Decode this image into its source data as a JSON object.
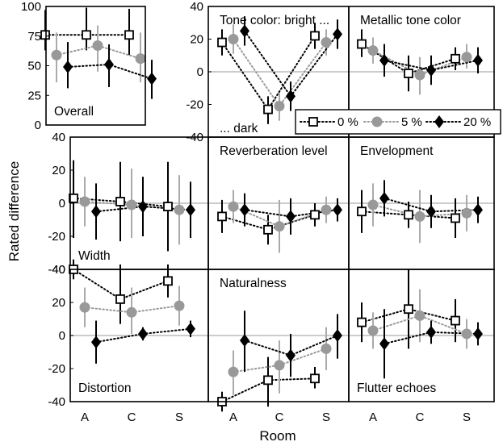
{
  "figure": {
    "ylabel": "Rated difference",
    "xlabel": "Room",
    "x_categories": [
      "A",
      "C",
      "S"
    ],
    "legend": {
      "placement": "inside-top-right",
      "entries": [
        {
          "label": "0 %",
          "marker": "open-square",
          "color": "#000000"
        },
        {
          "label": "5 %",
          "marker": "filled-circle",
          "color": "#999999"
        },
        {
          "label": "20 %",
          "marker": "filled-diamond",
          "color": "#000000"
        }
      ]
    },
    "colors": {
      "zero_line": "#bbbbbb",
      "err_0": "#000000",
      "err_5": "#aaaaaa",
      "err_20": "#000000"
    }
  },
  "chart_data": [
    {
      "type": "scatter",
      "title": "Overall",
      "categories": [
        "A",
        "C",
        "S"
      ],
      "ylim": [
        0,
        100
      ],
      "yticks": [
        0,
        25,
        50,
        75,
        100
      ],
      "series": [
        {
          "name": "0 %",
          "values": [
            76,
            76,
            76
          ],
          "err_low": [
            63,
            63,
            59
          ],
          "err_high": [
            97,
            99,
            98
          ]
        },
        {
          "name": "5 %",
          "values": [
            59,
            67,
            56
          ],
          "err_low": [
            36,
            45,
            36
          ],
          "err_high": [
            78,
            84,
            78
          ]
        },
        {
          "name": "20 %",
          "values": [
            49,
            51,
            39
          ],
          "err_low": [
            31,
            32,
            22
          ],
          "err_high": [
            70,
            68,
            55
          ]
        }
      ]
    },
    {
      "type": "scatter",
      "title": "Tone color: bright ...",
      "annotation": "... dark",
      "categories": [
        "A",
        "C",
        "S"
      ],
      "ylim": [
        -40,
        40
      ],
      "yticks": [
        -40,
        -20,
        0,
        20,
        40
      ],
      "series": [
        {
          "name": "0 %",
          "values": [
            18,
            -23,
            22
          ],
          "err_low": [
            10,
            -32,
            14
          ],
          "err_high": [
            26,
            -15,
            30
          ]
        },
        {
          "name": "5 %",
          "values": [
            20,
            -21,
            18
          ],
          "err_low": [
            11,
            -30,
            10
          ],
          "err_high": [
            29,
            -13,
            26
          ]
        },
        {
          "name": "20 %",
          "values": [
            25,
            -15,
            23
          ],
          "err_low": [
            16,
            -24,
            14
          ],
          "err_high": [
            34,
            -6,
            32
          ]
        }
      ]
    },
    {
      "type": "scatter",
      "title": "Metallic tone color",
      "categories": [
        "A",
        "C",
        "S"
      ],
      "ylim": [
        -40,
        40
      ],
      "yticks": [
        -40,
        -20,
        0,
        20,
        40
      ],
      "series": [
        {
          "name": "0 %",
          "values": [
            17,
            -1,
            8
          ],
          "err_low": [
            9,
            -12,
            1
          ],
          "err_high": [
            26,
            10,
            15
          ]
        },
        {
          "name": "5 %",
          "values": [
            13,
            -2,
            9
          ],
          "err_low": [
            5,
            -14,
            2
          ],
          "err_high": [
            21,
            9,
            17
          ]
        },
        {
          "name": "20 %",
          "values": [
            7,
            1,
            7
          ],
          "err_low": [
            -3,
            -8,
            -1
          ],
          "err_high": [
            17,
            10,
            15
          ]
        }
      ]
    },
    {
      "type": "scatter",
      "title": "Width",
      "categories": [
        "A",
        "C",
        "S"
      ],
      "ylim": [
        -40,
        40
      ],
      "yticks": [
        -40,
        -20,
        0,
        20,
        40
      ],
      "series": [
        {
          "name": "0 %",
          "values": [
            3,
            1,
            -2
          ],
          "err_low": [
            -21,
            -23,
            -29
          ],
          "err_high": [
            26,
            25,
            25
          ]
        },
        {
          "name": "5 %",
          "values": [
            1,
            -1,
            -4
          ],
          "err_low": [
            -14,
            -21,
            -25
          ],
          "err_high": [
            16,
            21,
            17
          ]
        },
        {
          "name": "20 %",
          "values": [
            -5,
            -2,
            -4
          ],
          "err_low": [
            -22,
            -20,
            -21
          ],
          "err_high": [
            12,
            16,
            13
          ]
        }
      ]
    },
    {
      "type": "scatter",
      "title": "Reverberation level",
      "categories": [
        "A",
        "C",
        "S"
      ],
      "ylim": [
        -40,
        40
      ],
      "yticks": [
        -40,
        -20,
        0,
        20,
        40
      ],
      "series": [
        {
          "name": "0 %",
          "values": [
            -8,
            -16,
            -7
          ],
          "err_low": [
            -18,
            -25,
            -14
          ],
          "err_high": [
            2,
            -7,
            0
          ]
        },
        {
          "name": "5 %",
          "values": [
            -2,
            -14,
            -4
          ],
          "err_low": [
            -12,
            -30,
            -12
          ],
          "err_high": [
            8,
            2,
            4
          ]
        },
        {
          "name": "20 %",
          "values": [
            -4,
            -8,
            -4
          ],
          "err_low": [
            -14,
            -19,
            -11
          ],
          "err_high": [
            6,
            3,
            3
          ]
        }
      ]
    },
    {
      "type": "scatter",
      "title": "Envelopment",
      "categories": [
        "A",
        "C",
        "S"
      ],
      "ylim": [
        -40,
        40
      ],
      "yticks": [
        -40,
        -20,
        0,
        20,
        40
      ],
      "series": [
        {
          "name": "0 %",
          "values": [
            -5,
            -7,
            -9
          ],
          "err_low": [
            -18,
            -15,
            -21
          ],
          "err_high": [
            8,
            1,
            3
          ]
        },
        {
          "name": "5 %",
          "values": [
            -1,
            -8,
            -6
          ],
          "err_low": [
            -14,
            -24,
            -17
          ],
          "err_high": [
            12,
            8,
            5
          ]
        },
        {
          "name": "20 %",
          "values": [
            3,
            -5,
            -4
          ],
          "err_low": [
            -8,
            -15,
            -12
          ],
          "err_high": [
            14,
            5,
            4
          ]
        }
      ]
    },
    {
      "type": "scatter",
      "title": "Distortion",
      "categories": [
        "A",
        "C",
        "S"
      ],
      "ylim": [
        -40,
        40
      ],
      "yticks": [
        -40,
        -20,
        0,
        20,
        40
      ],
      "series": [
        {
          "name": "0 %",
          "values": [
            40,
            22,
            33
          ],
          "err_low": [
            34,
            7,
            23
          ],
          "err_high": [
            46,
            43,
            43
          ]
        },
        {
          "name": "5 %",
          "values": [
            17,
            14,
            18
          ],
          "err_low": [
            5,
            1,
            6
          ],
          "err_high": [
            29,
            29,
            30
          ]
        },
        {
          "name": "20 %",
          "values": [
            -4,
            1,
            4
          ],
          "err_low": [
            -17,
            -3,
            -1
          ],
          "err_high": [
            9,
            5,
            9
          ]
        }
      ]
    },
    {
      "type": "scatter",
      "title": "Naturalness",
      "categories": [
        "A",
        "C",
        "S"
      ],
      "ylim": [
        -40,
        40
      ],
      "yticks": [
        -40,
        -20,
        0,
        20,
        40
      ],
      "series": [
        {
          "name": "0 %",
          "values": [
            -40,
            -27,
            -26
          ],
          "err_low": [
            -46,
            -43,
            -32
          ],
          "err_high": [
            -34,
            -13,
            -19
          ]
        },
        {
          "name": "5 %",
          "values": [
            -22,
            -18,
            -8
          ],
          "err_low": [
            -36,
            -35,
            -21
          ],
          "err_high": [
            -9,
            -3,
            5
          ]
        },
        {
          "name": "20 %",
          "values": [
            -3,
            -12,
            0
          ],
          "err_low": [
            -22,
            -25,
            -14
          ],
          "err_high": [
            15,
            1,
            13
          ]
        }
      ]
    },
    {
      "type": "scatter",
      "title": "Flutter echoes",
      "categories": [
        "A",
        "C",
        "S"
      ],
      "ylim": [
        -40,
        40
      ],
      "yticks": [
        -40,
        -20,
        0,
        20,
        40
      ],
      "series": [
        {
          "name": "0 %",
          "values": [
            8,
            16,
            9
          ],
          "err_low": [
            -4,
            -8,
            -4
          ],
          "err_high": [
            20,
            40,
            22
          ]
        },
        {
          "name": "5 %",
          "values": [
            3,
            12,
            1
          ],
          "err_low": [
            -8,
            -4,
            -8
          ],
          "err_high": [
            14,
            28,
            10
          ]
        },
        {
          "name": "20 %",
          "values": [
            -5,
            2,
            1
          ],
          "err_low": [
            -26,
            -5,
            -6
          ],
          "err_high": [
            16,
            9,
            8
          ]
        }
      ]
    }
  ]
}
